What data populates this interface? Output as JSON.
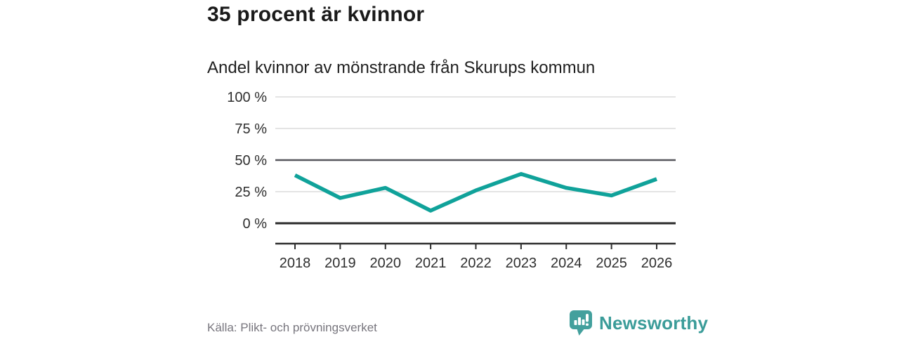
{
  "header": {
    "title": "35 procent är kvinnor",
    "subtitle": "Andel kvinnor av mönstrande från Skurups kommun"
  },
  "chart_data": {
    "type": "line",
    "categories": [
      "2018",
      "2019",
      "2020",
      "2021",
      "2022",
      "2023",
      "2024",
      "2025",
      "2026"
    ],
    "values": [
      38,
      20,
      28,
      10,
      26,
      39,
      28,
      22,
      35
    ],
    "series_name": "Andel kvinnor av mönstrande",
    "title": "35 procent är kvinnor",
    "subtitle": "Andel kvinnor av mönstrande från Skurups kommun",
    "xlabel": "",
    "ylabel": "",
    "ylim": [
      0,
      100
    ],
    "yticks": [
      0,
      25,
      50,
      75,
      100
    ],
    "ytick_suffix": " %",
    "grid": "horizontal",
    "highlighted_gridlines": [
      0,
      50
    ],
    "legend": "none",
    "line_color": "#10a29a"
  },
  "footer": {
    "source": "Källa: Plikt- och prövningsverket",
    "brand": "Newsworthy"
  },
  "colors": {
    "accent": "#10a29a",
    "brand_teal": "#43a09d",
    "grid_light": "#e4e4e4",
    "grid_mid_dark": "#56565c",
    "baseline_dark": "#2b2b2b",
    "axis": "#2e2e2e",
    "title_text": "#1a1a1a",
    "muted_text": "#77757d"
  }
}
